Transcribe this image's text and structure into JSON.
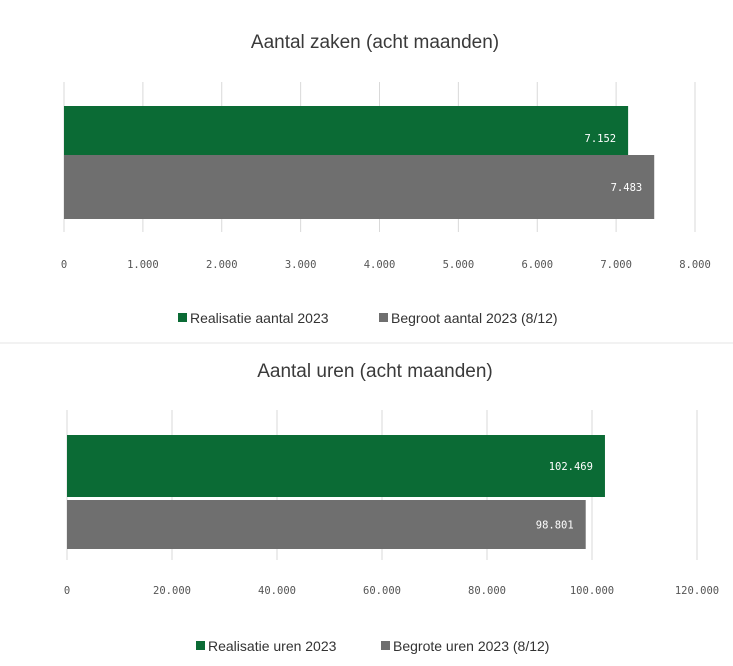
{
  "colors": {
    "realisatie": "#0b6b35",
    "begroot": "#6f6f6f"
  },
  "chart_data": [
    {
      "type": "bar",
      "orientation": "horizontal",
      "title": "Aantal zaken (acht maanden)",
      "xlim": [
        0,
        8000
      ],
      "ticks": [
        "0",
        "1.000",
        "2.000",
        "3.000",
        "4.000",
        "5.000",
        "6.000",
        "7.000",
        "8.000"
      ],
      "grid": true,
      "legend_position": "bottom",
      "series": [
        {
          "name": "Realisatie aantal 2023",
          "value": 7152,
          "label": "7.152"
        },
        {
          "name": "Begroot aantal 2023 (8/12)",
          "value": 7483,
          "label": "7.483"
        }
      ]
    },
    {
      "type": "bar",
      "orientation": "horizontal",
      "title": "Aantal uren (acht maanden)",
      "xlim": [
        0,
        120000
      ],
      "ticks": [
        "0",
        "20.000",
        "40.000",
        "60.000",
        "80.000",
        "100.000",
        "120.000"
      ],
      "grid": true,
      "legend_position": "bottom",
      "series": [
        {
          "name": "Realisatie uren 2023",
          "value": 102469,
          "label": "102.469"
        },
        {
          "name": "Begrote uren 2023 (8/12)",
          "value": 98801,
          "label": "98.801"
        }
      ]
    }
  ]
}
